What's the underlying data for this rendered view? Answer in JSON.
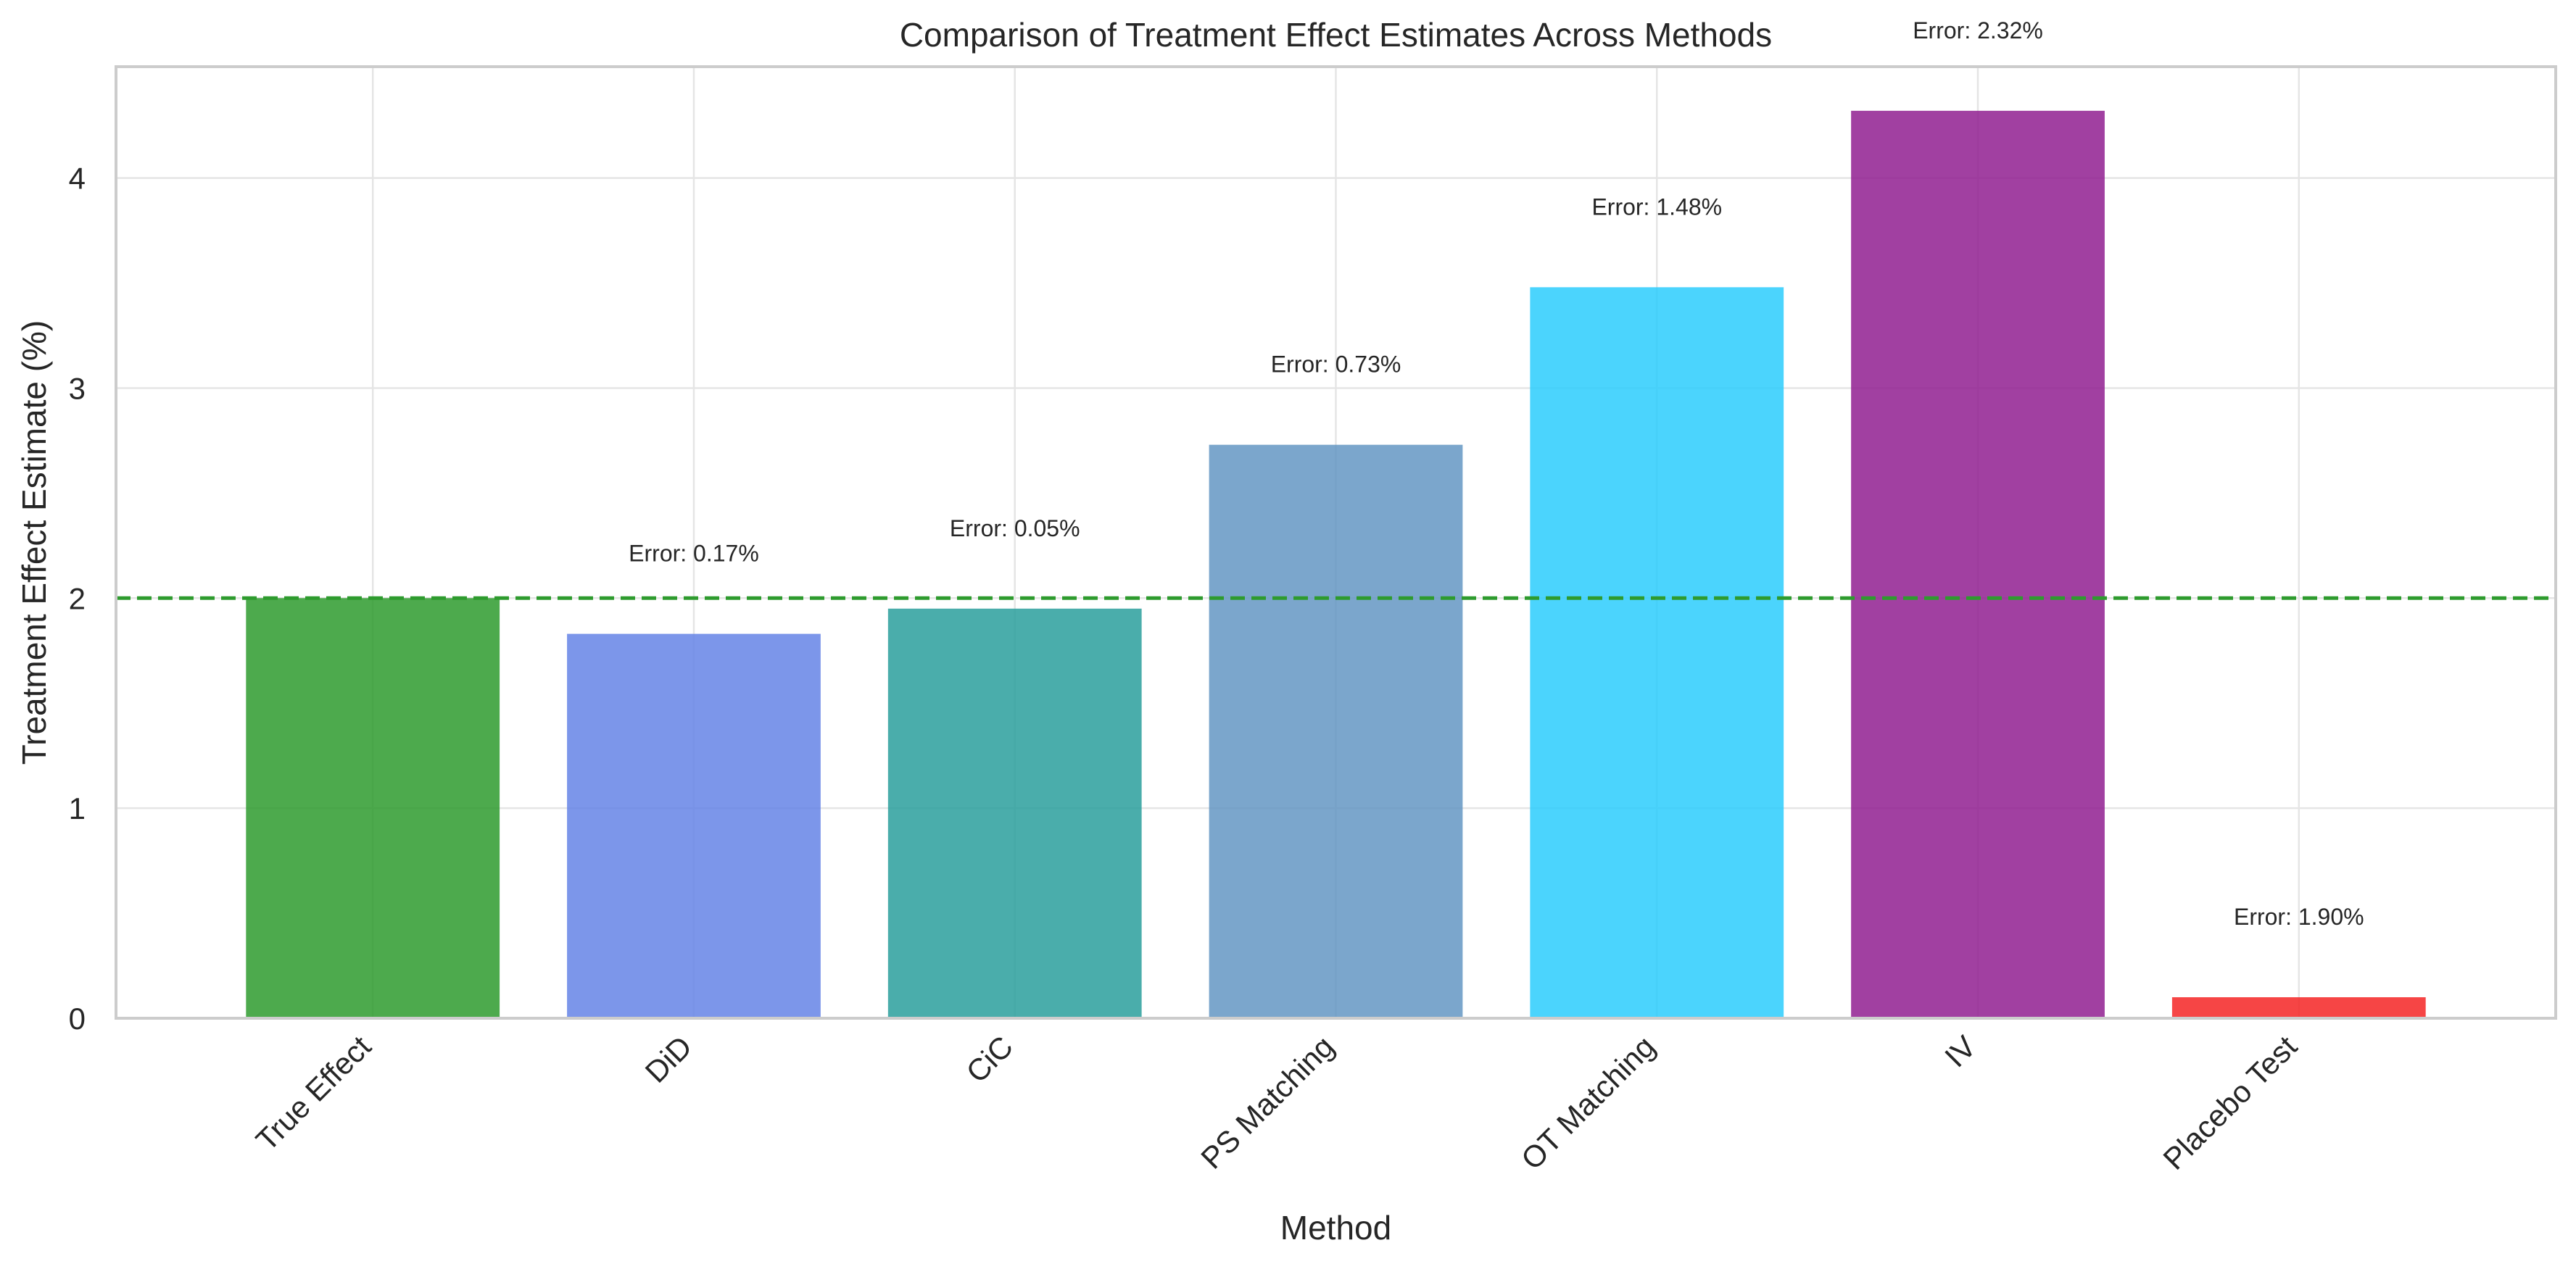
{
  "chart_data": {
    "type": "bar",
    "title": "Comparison of Treatment Effect Estimates Across Methods",
    "xlabel": "Method",
    "ylabel": "Treatment Effect Estimate (%)",
    "categories": [
      "True Effect",
      "DiD",
      "CiC",
      "PS Matching",
      "OT Matching",
      "IV",
      "Placebo Test"
    ],
    "values": [
      2.0,
      1.83,
      1.95,
      2.73,
      3.48,
      4.32,
      0.1
    ],
    "annotations": [
      "",
      "Error: 0.17%",
      "Error: 0.05%",
      "Error: 0.73%",
      "Error: 1.48%",
      "Error: 2.32%",
      "Error: 1.90%"
    ],
    "bar_colors": [
      "#2e9b2e",
      "#6584e6",
      "#2a9f9c",
      "#6496c3",
      "#2bccfd",
      "#901f90",
      "#f52525"
    ],
    "reference_line": {
      "value": 2.0,
      "color": "#2e9b2e",
      "style": "dashed"
    },
    "ylim": [
      0,
      4.53
    ],
    "yticks": [
      0,
      1,
      2,
      3,
      4
    ],
    "grid": true
  }
}
